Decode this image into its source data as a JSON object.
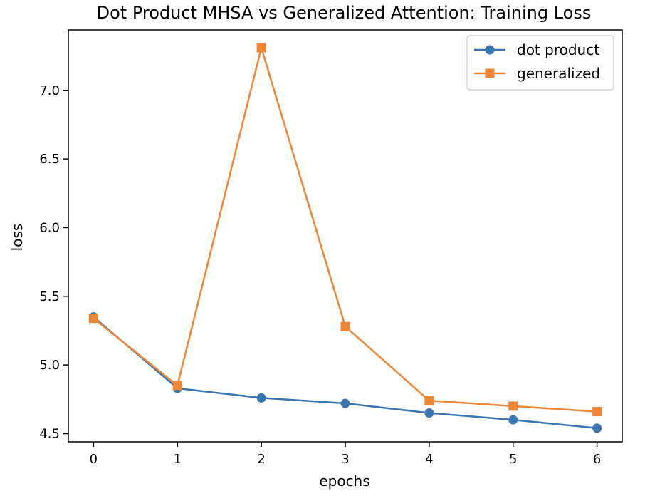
{
  "chart_data": {
    "type": "line",
    "title": "Dot Product MHSA vs Generalized Attention: Training Loss",
    "xlabel": "epochs",
    "ylabel": "loss",
    "x": [
      0,
      1,
      2,
      3,
      4,
      5,
      6
    ],
    "x_ticks": [
      "0",
      "1",
      "2",
      "3",
      "4",
      "5",
      "6"
    ],
    "y_ticks": [
      "4.5",
      "5.0",
      "5.5",
      "6.0",
      "6.5",
      "7.0"
    ],
    "y_tick_values": [
      4.5,
      5.0,
      5.5,
      6.0,
      6.5,
      7.0
    ],
    "xlim": [
      -0.3,
      6.3
    ],
    "ylim": [
      4.44,
      7.44
    ],
    "grid": false,
    "legend_position": "top-right",
    "series": [
      {
        "name": "dot product",
        "color": "#3b75af",
        "marker": "circle",
        "values": [
          5.35,
          4.83,
          4.76,
          4.72,
          4.65,
          4.6,
          4.54
        ]
      },
      {
        "name": "generalized",
        "color": "#ef8636",
        "marker": "square",
        "values": [
          5.34,
          4.85,
          7.31,
          5.28,
          4.74,
          4.7,
          4.66
        ]
      }
    ]
  }
}
